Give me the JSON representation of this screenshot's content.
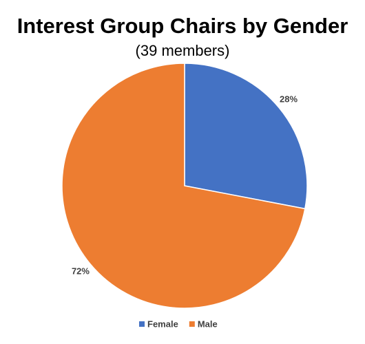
{
  "chart_data": {
    "type": "pie",
    "title": "Interest Group Chairs by Gender",
    "subtitle": "(39 members)",
    "categories": [
      "Female",
      "Male"
    ],
    "values": [
      28,
      72
    ],
    "value_labels": [
      "28%",
      "72%"
    ],
    "colors": [
      "#4472c4",
      "#ed7d31"
    ],
    "legend": "bottom"
  }
}
